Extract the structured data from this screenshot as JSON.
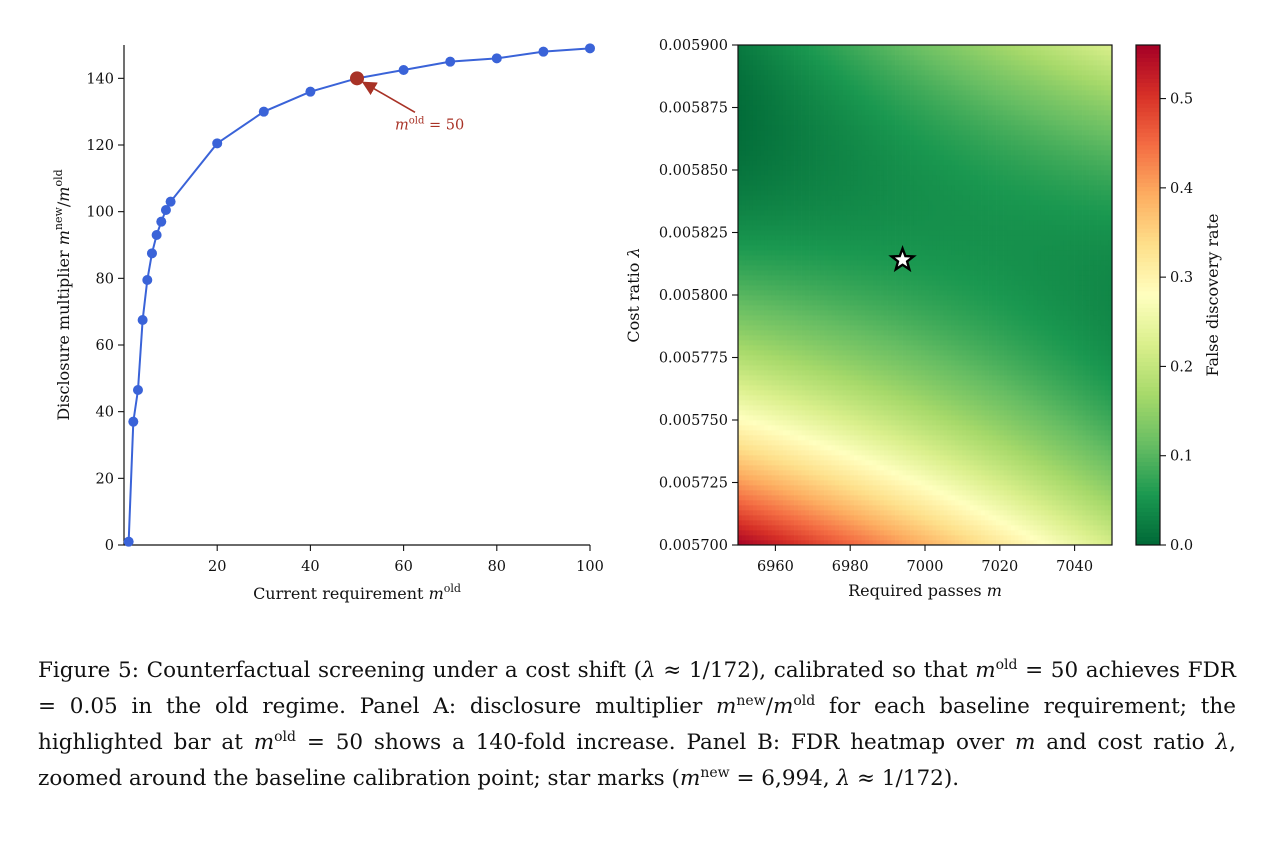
{
  "figure": {
    "panel_a": {
      "xlabel": "Current requirement m^old",
      "ylabel": "Disclosure multiplier m^new/m^old",
      "annotation": "m^old = 50"
    },
    "panel_b": {
      "xlabel": "Required passes m",
      "ylabel": "Cost ratio λ",
      "colorbar_label": "False discovery rate"
    }
  },
  "caption": {
    "figure_label": "Figure 5:",
    "text_1": "Counterfactual screening under a cost shift (λ ≈ 1/172), calibrated so that m^old = 50 achieves FDR = 0.05 in the old regime. Panel A: disclosure multiplier m^new/m^old for each baseline requirement; the highlighted bar at m^old = 50 shows a 140-fold increase. Panel B: FDR heatmap over m and cost ratio λ, zoomed around the baseline calibration point; star marks (m^new = 6,994, λ ≈ 1/172)."
  },
  "colors": {
    "line": "#3a63d8",
    "highlight": "#a83226",
    "colormap": [
      "#a50026",
      "#d73027",
      "#f46d43",
      "#fdae61",
      "#fee08b",
      "#ffffbf",
      "#d9ef8b",
      "#a6d96a",
      "#66bd63",
      "#1a9850",
      "#006837"
    ]
  },
  "chart_data": [
    {
      "type": "line",
      "x": [
        1,
        2,
        3,
        4,
        5,
        6,
        7,
        8,
        9,
        10,
        20,
        30,
        40,
        50,
        60,
        70,
        80,
        90,
        100
      ],
      "y": [
        1,
        37,
        46.5,
        67.5,
        79.5,
        87.5,
        93,
        97,
        100.5,
        103,
        120.5,
        130,
        136,
        140,
        142.5,
        145,
        146,
        148,
        149
      ],
      "highlight": {
        "x": 50,
        "y": 140,
        "label": "m^old = 50"
      },
      "xlabel": "Current requirement m^old",
      "ylabel": "Disclosure multiplier m^new/m^old",
      "xlim": [
        0,
        100
      ],
      "ylim": [
        0,
        150
      ],
      "xticks": [
        20,
        40,
        60,
        80,
        100
      ],
      "xtick_labels": [
        "20",
        "40",
        "60",
        "80",
        "100"
      ],
      "yticks": [
        0,
        20,
        40,
        60,
        80,
        100,
        120,
        140
      ],
      "ytick_labels": [
        "0",
        "20",
        "40",
        "60",
        "80",
        "100",
        "120",
        "140"
      ],
      "grid": false
    },
    {
      "type": "heatmap",
      "xlabel": "Required passes m",
      "ylabel": "Cost ratio λ",
      "xlim": [
        6950,
        7050
      ],
      "ylim": [
        0.0057,
        0.0059
      ],
      "xticks": [
        6960,
        6980,
        7000,
        7020,
        7040
      ],
      "xtick_labels": [
        "6960",
        "6980",
        "7000",
        "7020",
        "7040"
      ],
      "yticks": [
        0.0057,
        0.005725,
        0.00575,
        0.005775,
        0.0058,
        0.005825,
        0.00585,
        0.005875,
        0.0059
      ],
      "ytick_labels": [
        "0.005700",
        "0.005725",
        "0.005750",
        "0.005775",
        "0.005800",
        "0.005825",
        "0.005850",
        "0.005875",
        "0.005900"
      ],
      "star": {
        "m": 6994,
        "lambda": 0.005814
      },
      "colorbar": {
        "label": "False discovery rate",
        "range": [
          0,
          0.56
        ],
        "ticks": [
          0.0,
          0.1,
          0.2,
          0.3,
          0.4,
          0.5
        ],
        "tick_labels": [
          "0.0",
          "0.1",
          "0.2",
          "0.3",
          "0.4",
          "0.5"
        ]
      },
      "fdr_model": {
        "m_points": [
          6950,
          7050,
          6950,
          7050,
          6950
        ],
        "lambda_points": [
          0.0057,
          0.0057,
          0.005765,
          0.005814,
          0.0059
        ],
        "fdr_points": [
          0.56,
          0.22,
          0.22,
          0.04,
          0.02
        ]
      }
    }
  ]
}
